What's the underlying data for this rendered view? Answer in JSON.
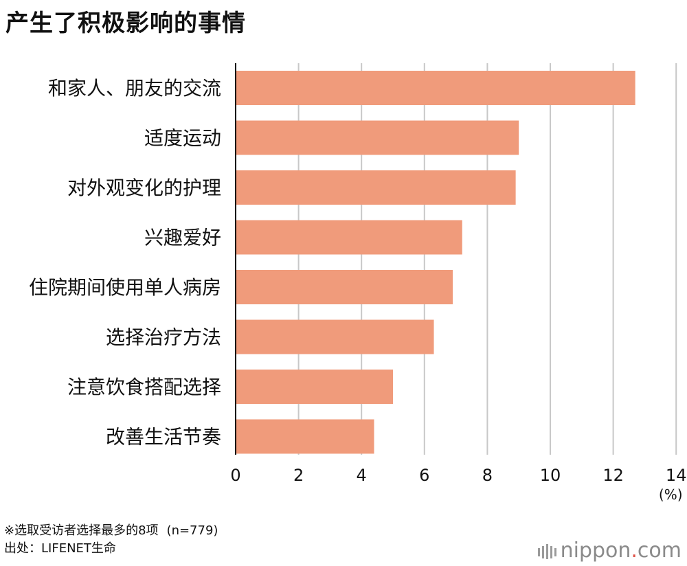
{
  "title": "产生了积极影响的事情",
  "unit": "(%)",
  "note": "※选取受访者选择最多的8项",
  "sample": "(n=779)",
  "source": "出处：LIFENET生命",
  "logo": {
    "text": "nippon",
    "dot": ".",
    "tld": "com"
  },
  "colors": {
    "bar": "#f09b7b",
    "grid": "#c8c8c8",
    "axis": "#111111",
    "logo_dot": "#e0554a"
  },
  "chart_data": {
    "type": "bar",
    "orientation": "horizontal",
    "categories": [
      "和家人、朋友的交流",
      "适度运动",
      "对外观变化的护理",
      "兴趣爱好",
      "住院期间使用单人病房",
      "选择治疗方法",
      "注意饮食搭配选择",
      "改善生活节奏"
    ],
    "values": [
      12.7,
      9.0,
      8.9,
      7.2,
      6.9,
      6.3,
      5.0,
      4.4
    ],
    "xlim": [
      0,
      14
    ],
    "xticks": [
      0,
      2,
      4,
      6,
      8,
      10,
      12,
      14
    ],
    "grid": true
  }
}
